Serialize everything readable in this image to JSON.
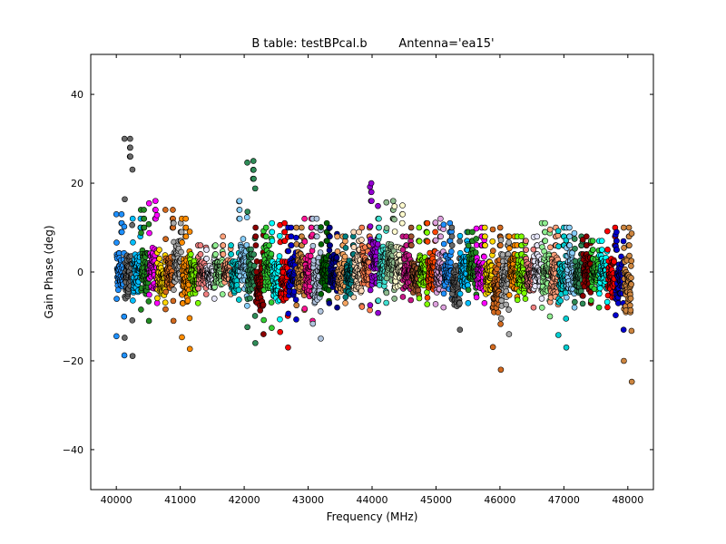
{
  "chart_data": {
    "type": "scatter",
    "title": "B table: testBPcal.b",
    "subtitle": "Antenna='ea15'",
    "xlabel": "Frequency (MHz)",
    "ylabel": "Gain Phase (deg)",
    "xlim": [
      39600,
      48400
    ],
    "ylim": [
      -49,
      49
    ],
    "xticks": [
      40000,
      41000,
      42000,
      43000,
      44000,
      45000,
      46000,
      47000,
      48000
    ],
    "yticks": [
      -40,
      -20,
      0,
      20,
      40
    ],
    "grid": false,
    "legend": "none",
    "marker": "circle",
    "spw_start_mhz": 40000,
    "spw_width_mhz": 128,
    "spw_count": 63,
    "channels_per_spw": 64,
    "channel_spacing_mhz": 2,
    "colors": [
      "#1e90ff",
      "#696969",
      "#00bfff",
      "#228b22",
      "#ff00ff",
      "#ffd700",
      "#d2691e",
      "#a9a9a9",
      "#ff8c00",
      "#7cfc00",
      "#f08080",
      "#e6e6fa",
      "#90ee90",
      "#ffa07a",
      "#00ced1",
      "#87cefa",
      "#2e8b57",
      "#8b0000",
      "#32cd32",
      "#00ffff",
      "#ff0000",
      "#0000cd",
      "#cd853f",
      "#ff1493",
      "#b0c4de",
      "#006400",
      "#00008b",
      "#f4a460",
      "#008080",
      "#ffdab9",
      "#ff7f50",
      "#9400d3",
      "#40e0d0",
      "#8fbc8f",
      "#fffacd",
      "#c71585",
      "#a0522d",
      "#7fff00",
      "#ff4500",
      "#dda0dd"
    ],
    "series": [
      {
        "f0": 40000,
        "base": 0,
        "amp": 5,
        "min": -19,
        "max": 13
      },
      {
        "f0": 40128,
        "base": -1,
        "amp": 6,
        "min": -19,
        "max": 30
      },
      {
        "f0": 40256,
        "base": 0,
        "amp": 5,
        "min": -9,
        "max": 12
      },
      {
        "f0": 40384,
        "base": 0,
        "amp": 6,
        "min": -12,
        "max": 14
      },
      {
        "f0": 40512,
        "base": 1,
        "amp": 5,
        "min": -7,
        "max": 16
      },
      {
        "f0": 40640,
        "base": -2,
        "amp": 4,
        "min": -7,
        "max": 5
      },
      {
        "f0": 40768,
        "base": 0,
        "amp": 4,
        "min": -11,
        "max": 14
      },
      {
        "f0": 40896,
        "base": 2,
        "amp": 5,
        "min": -5,
        "max": 11
      },
      {
        "f0": 41024,
        "base": -2,
        "amp": 6,
        "min": -18,
        "max": 12
      },
      {
        "f0": 41152,
        "base": -1,
        "amp": 4,
        "min": -7,
        "max": 4
      },
      {
        "f0": 41280,
        "base": 0,
        "amp": 3,
        "min": -5,
        "max": 6
      },
      {
        "f0": 41408,
        "base": -1,
        "amp": 3,
        "min": -6,
        "max": 5
      },
      {
        "f0": 41536,
        "base": 0,
        "amp": 3,
        "min": -5,
        "max": 6
      },
      {
        "f0": 41664,
        "base": 0,
        "amp": 3,
        "min": -5,
        "max": 8
      },
      {
        "f0": 41792,
        "base": -1,
        "amp": 4,
        "min": -7,
        "max": 6
      },
      {
        "f0": 41920,
        "base": 2,
        "amp": 6,
        "min": -8,
        "max": 16
      },
      {
        "f0": 42048,
        "base": 0,
        "amp": 6,
        "min": -16,
        "max": 25
      },
      {
        "f0": 42176,
        "base": -3,
        "amp": 6,
        "min": -14,
        "max": 10
      },
      {
        "f0": 42304,
        "base": 1,
        "amp": 5,
        "min": -13,
        "max": 10
      },
      {
        "f0": 42432,
        "base": -2,
        "amp": 5,
        "min": -11,
        "max": 11
      },
      {
        "f0": 42560,
        "base": -2,
        "amp": 5,
        "min": -17,
        "max": 11
      },
      {
        "f0": 42688,
        "base": -1,
        "amp": 5,
        "min": -11,
        "max": 10
      },
      {
        "f0": 42816,
        "base": 0,
        "amp": 5,
        "min": -9,
        "max": 10
      },
      {
        "f0": 42944,
        "base": -1,
        "amp": 5,
        "min": -11,
        "max": 12
      },
      {
        "f0": 43072,
        "base": -2,
        "amp": 6,
        "min": -15,
        "max": 12
      },
      {
        "f0": 43200,
        "base": 0,
        "amp": 4,
        "min": -7,
        "max": 11
      },
      {
        "f0": 43328,
        "base": 0,
        "amp": 4,
        "min": -8,
        "max": 10
      },
      {
        "f0": 43456,
        "base": -1,
        "amp": 4,
        "min": -7,
        "max": 8
      },
      {
        "f0": 43584,
        "base": -1,
        "amp": 4,
        "min": -8,
        "max": 8
      },
      {
        "f0": 43712,
        "base": 0,
        "amp": 5,
        "min": -8,
        "max": 9
      },
      {
        "f0": 43840,
        "base": 1,
        "amp": 5,
        "min": -9,
        "max": 10
      },
      {
        "f0": 43968,
        "base": 2,
        "amp": 6,
        "min": -10,
        "max": 20
      },
      {
        "f0": 44096,
        "base": 1,
        "amp": 5,
        "min": -7,
        "max": 12
      },
      {
        "f0": 44224,
        "base": 2,
        "amp": 5,
        "min": -6,
        "max": 16
      },
      {
        "f0": 44352,
        "base": 1,
        "amp": 5,
        "min": -5,
        "max": 15
      },
      {
        "f0": 44480,
        "base": 0,
        "amp": 4,
        "min": -7,
        "max": 8
      },
      {
        "f0": 44608,
        "base": -1,
        "amp": 4,
        "min": -6,
        "max": 10
      },
      {
        "f0": 44736,
        "base": 0,
        "amp": 4,
        "min": -8,
        "max": 11
      },
      {
        "f0": 44864,
        "base": 0,
        "amp": 5,
        "min": -7,
        "max": 11
      },
      {
        "f0": 44992,
        "base": 0,
        "amp": 5,
        "min": -8,
        "max": 12
      },
      {
        "f0": 45120,
        "base": 0,
        "amp": 4,
        "min": -6,
        "max": 11
      },
      {
        "f0": 45248,
        "base": -3,
        "amp": 5,
        "min": -13,
        "max": 10
      },
      {
        "f0": 45376,
        "base": 0,
        "amp": 4,
        "min": -7,
        "max": 9
      },
      {
        "f0": 45504,
        "base": 1,
        "amp": 4,
        "min": -6,
        "max": 9
      },
      {
        "f0": 45632,
        "base": 0,
        "amp": 4,
        "min": -7,
        "max": 10
      },
      {
        "f0": 45760,
        "base": -1,
        "amp": 4,
        "min": -8,
        "max": 10
      },
      {
        "f0": 45888,
        "base": -4,
        "amp": 7,
        "min": -22,
        "max": 10
      },
      {
        "f0": 46016,
        "base": -2,
        "amp": 6,
        "min": -14,
        "max": 8
      },
      {
        "f0": 46144,
        "base": 0,
        "amp": 4,
        "min": -6,
        "max": 8
      },
      {
        "f0": 46272,
        "base": -1,
        "amp": 4,
        "min": -7,
        "max": 8
      },
      {
        "f0": 46400,
        "base": -1,
        "amp": 4,
        "min": -8,
        "max": 7
      },
      {
        "f0": 46528,
        "base": 0,
        "amp": 4,
        "min": -6,
        "max": 8
      },
      {
        "f0": 46656,
        "base": 0,
        "amp": 5,
        "min": -10,
        "max": 11
      },
      {
        "f0": 46784,
        "base": -1,
        "amp": 5,
        "min": -8,
        "max": 10
      },
      {
        "f0": 46912,
        "base": -2,
        "amp": 6,
        "min": -17,
        "max": 10
      },
      {
        "f0": 47040,
        "base": 0,
        "amp": 5,
        "min": -8,
        "max": 10
      },
      {
        "f0": 47168,
        "base": -1,
        "amp": 4,
        "min": -8,
        "max": 8
      },
      {
        "f0": 47296,
        "base": 0,
        "amp": 4,
        "min": -7,
        "max": 8
      },
      {
        "f0": 47424,
        "base": 0,
        "amp": 4,
        "min": -8,
        "max": 7
      },
      {
        "f0": 47552,
        "base": 0,
        "amp": 4,
        "min": -7,
        "max": 7
      },
      {
        "f0": 47680,
        "base": -1,
        "amp": 5,
        "min": -9,
        "max": 10
      },
      {
        "f0": 47808,
        "base": -2,
        "amp": 6,
        "min": -13,
        "max": 9
      },
      {
        "f0": 47936,
        "base": -3,
        "amp": 7,
        "min": -25,
        "max": 10
      }
    ]
  }
}
